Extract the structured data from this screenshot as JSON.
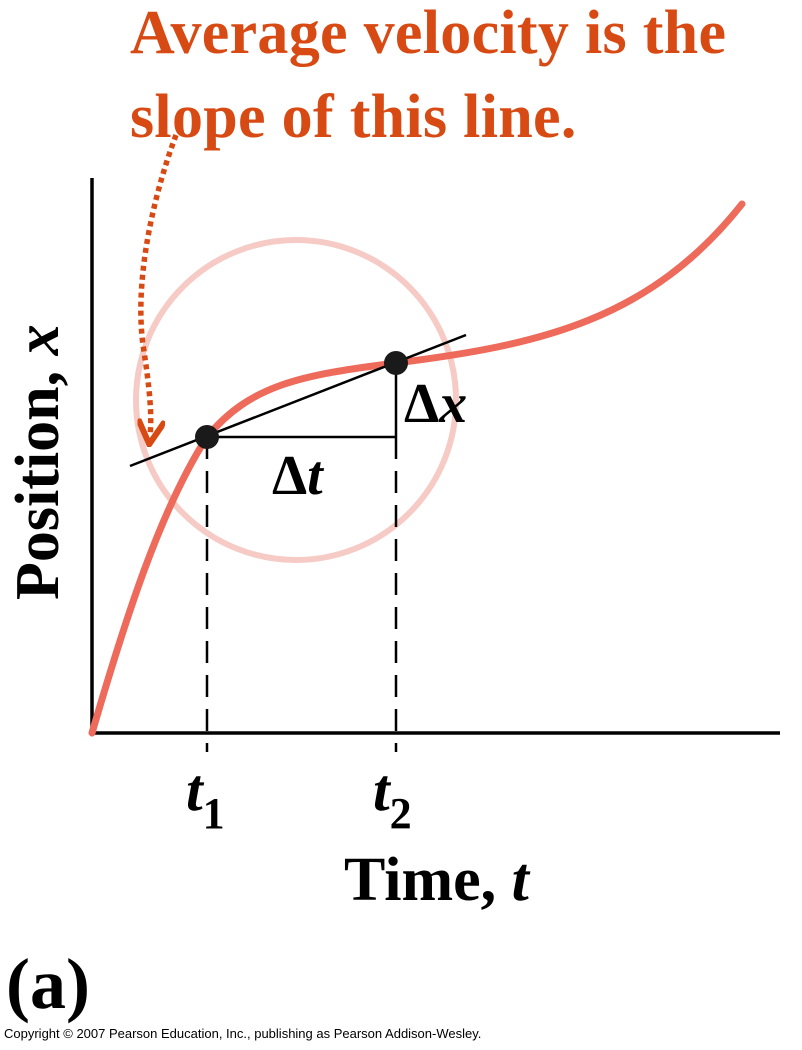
{
  "annotation": {
    "line1": "Average velocity is the",
    "line2": "slope of this line."
  },
  "axes": {
    "y_label_text": "Position, ",
    "y_label_var": "x",
    "x_label_text": "Time, ",
    "x_label_var": "t"
  },
  "ticks": {
    "t1_var": "t",
    "t1_sub": "1",
    "t2_var": "t",
    "t2_sub": "2"
  },
  "deltas": {
    "dt_symbol": "Δ",
    "dt_var": "t",
    "dx_symbol": "Δ",
    "dx_var": "x"
  },
  "panel_label": "(a)",
  "copyright": "Copyright © 2007 Pearson Education, Inc., publishing as Pearson Addison-Wesley.",
  "colors": {
    "annotation": "#d84a13",
    "curve": "#ee6a5a",
    "circle": "#f6cbc6",
    "axis": "#000000"
  }
}
